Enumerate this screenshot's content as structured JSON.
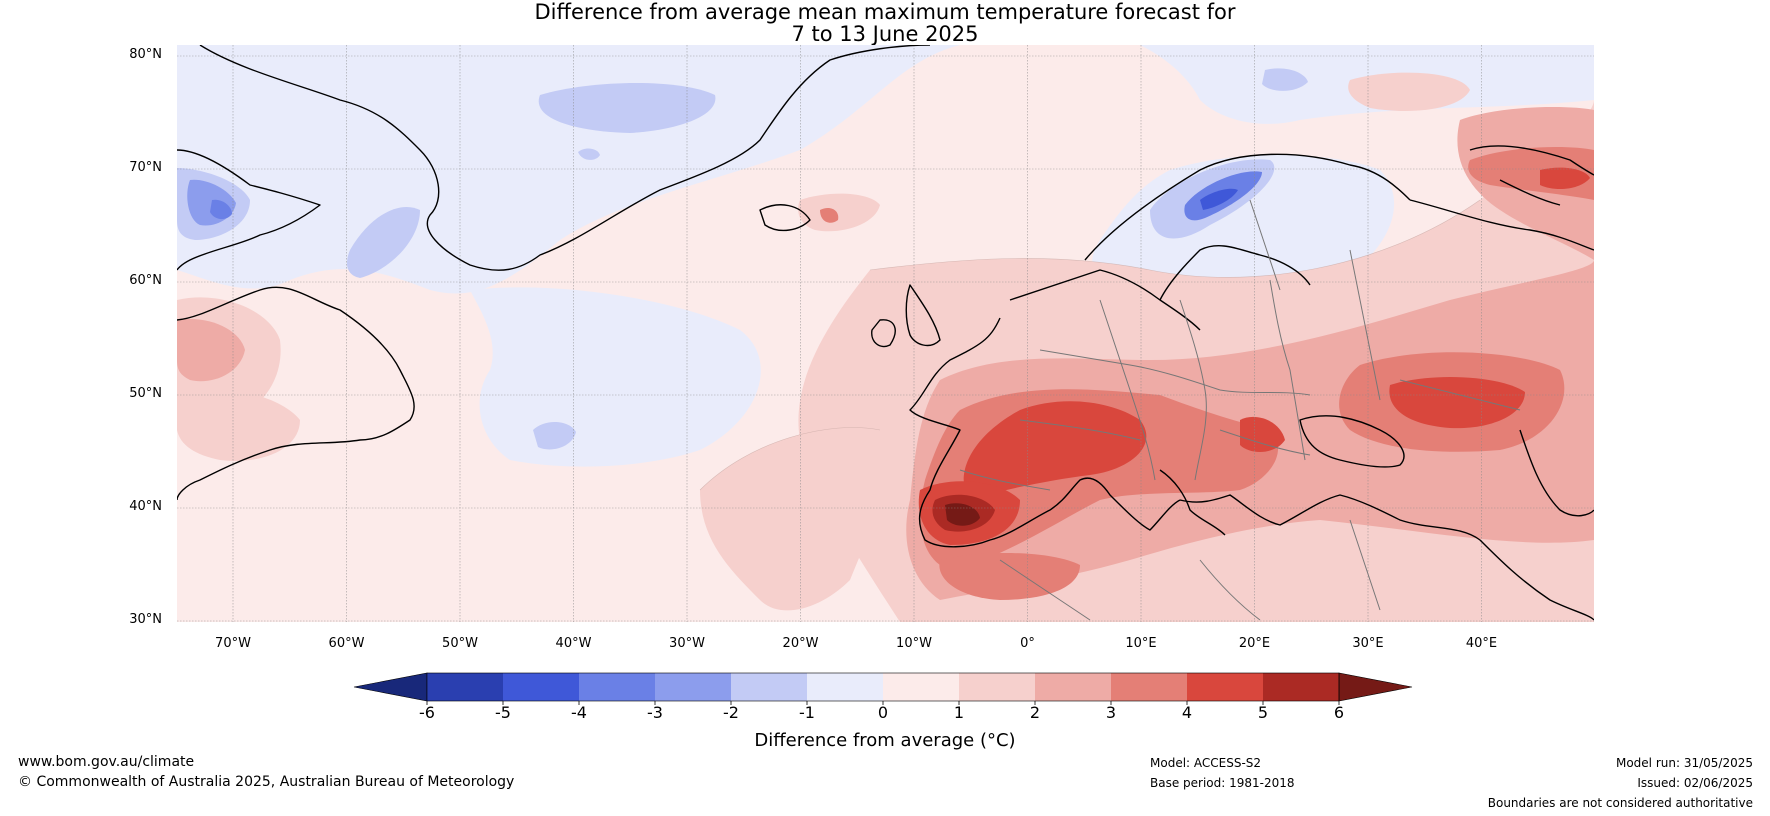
{
  "title_line1": "Difference from average mean maximum temperature forecast for",
  "title_line2": "7 to 13 June 2025",
  "lat_labels": [
    "80°N",
    "70°N",
    "60°N",
    "50°N",
    "40°N",
    "30°N"
  ],
  "lon_labels": [
    "70°W",
    "60°W",
    "50°W",
    "40°W",
    "30°W",
    "20°W",
    "10°W",
    "0°",
    "10°E",
    "20°E",
    "30°E",
    "40°E"
  ],
  "colorbar": {
    "ticks": [
      "-6",
      "-5",
      "-4",
      "-3",
      "-2",
      "-1",
      "0",
      "1",
      "2",
      "3",
      "4",
      "5",
      "6"
    ],
    "colors": [
      "#18287a",
      "#2a3fb0",
      "#3f58d8",
      "#6a80e6",
      "#8c9ded",
      "#c3cbf5",
      "#e9ecfb",
      "#fcebea",
      "#f6d0cd",
      "#eeaba6",
      "#e47f76",
      "#d9473d",
      "#ab2a24",
      "#751a16"
    ],
    "label": "Difference from average (°C)"
  },
  "footer": {
    "url": "www.bom.gov.au/climate",
    "copyright": "© Commonwealth of Australia 2025, Australian Bureau of Meteorology",
    "model": "Model: ACCESS-S2",
    "base_period": "Base period: 1981-2018",
    "model_run": "Model run: 31/05/2025",
    "issued": "Issued: 02/06/2025",
    "disclaimer": "Boundaries are not considered authoritative"
  }
}
